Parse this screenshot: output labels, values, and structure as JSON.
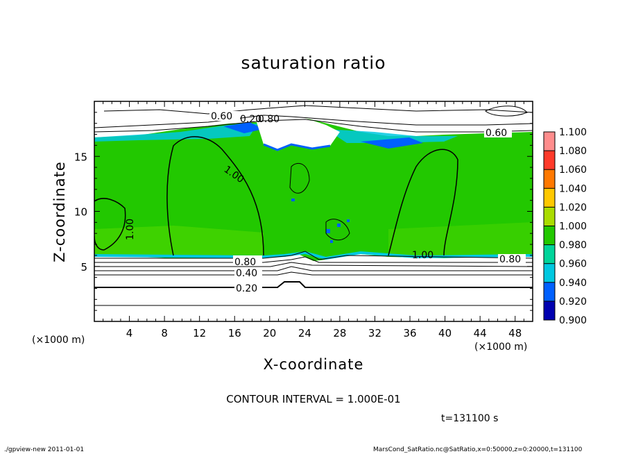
{
  "chart_data": {
    "type": "heatmap",
    "title": "saturation ratio",
    "xlabel": "X-coordinate",
    "ylabel": "Z-coordinate",
    "x_unit": "(×1000 m)",
    "y_unit": "(×1000 m)",
    "xlim": [
      0,
      50
    ],
    "ylim": [
      0,
      20
    ],
    "x_ticks": [
      "4",
      "8",
      "12",
      "16",
      "20",
      "24",
      "28",
      "32",
      "36",
      "40",
      "44",
      "48"
    ],
    "y_ticks": [
      "5",
      "10",
      "15"
    ],
    "colorbar": {
      "levels": [
        "1.100",
        "1.080",
        "1.060",
        "1.040",
        "1.020",
        "1.000",
        "0.980",
        "0.960",
        "0.940",
        "0.920",
        "0.900"
      ],
      "colors": [
        "#ff8c8c",
        "#ff3a2a",
        "#ff7800",
        "#ffc800",
        "#aadc00",
        "#22c800",
        "#00d49a",
        "#00c8e0",
        "#0060ff",
        "#0000b0",
        "#7800b4"
      ]
    },
    "contour_labels": [
      "0.60",
      "0.20",
      "1.00",
      "1.00",
      "0.60",
      "0.80",
      "0.40",
      "0.20",
      "1.00",
      "0.80",
      "0.80"
    ],
    "contour_interval": "CONTOUR INTERVAL = 1.000E-01",
    "time": "t=131100 s",
    "footer_left": "./gpview-new   2011-01-01",
    "footer_right": "MarsCond_SatRatio.nc@SatRatio,x=0:50000,z=0:20000,t=131100"
  }
}
